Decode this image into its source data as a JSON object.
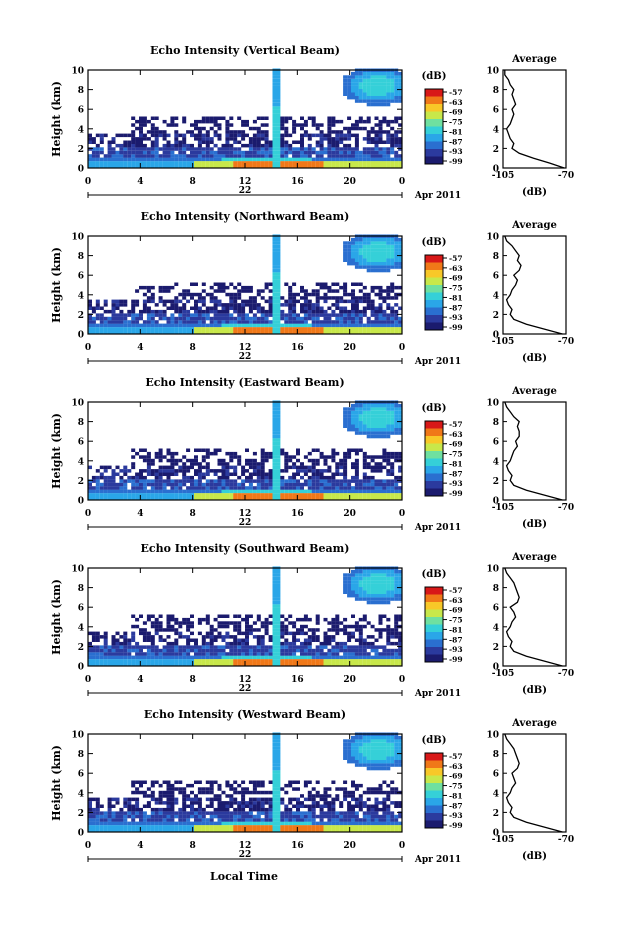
{
  "figure": {
    "xlabel": "Local Time",
    "colors": {
      "cmap": [
        "#1b1b6e",
        "#2b3a9e",
        "#2a6fd0",
        "#2aa6e8",
        "#35d0d8",
        "#6fe0a0",
        "#c8e84a",
        "#f8c828",
        "#f07818",
        "#d81818"
      ],
      "line": "#000000"
    }
  },
  "chart_data": [
    {
      "type": "heatmap",
      "title": "Echo Intensity (Vertical Beam)",
      "ylabel": "Height (km)",
      "ylim": [
        0,
        10
      ],
      "yticks": [
        "0",
        "2",
        "4",
        "6",
        "8",
        "10"
      ],
      "xlim": [
        0,
        24
      ],
      "xticks": [
        "0",
        "4",
        "8",
        "12",
        "16",
        "20",
        "0"
      ],
      "date_day": "22",
      "date_month": "Apr 2011",
      "colorbar": {
        "unit": "(dB)",
        "ticks": [
          "-57",
          "-63",
          "-69",
          "-75",
          "-81",
          "-87",
          "-93",
          "-99"
        ]
      },
      "profile": {
        "title": "Average",
        "xlabel": "(dB)",
        "xlim": [
          -105,
          -70
        ],
        "xticks": [
          "-105",
          "-70"
        ],
        "yticks": [
          "0",
          "2",
          "4",
          "6",
          "8",
          "10"
        ],
        "height": [
          0.0,
          0.5,
          1.0,
          1.5,
          2.0,
          2.5,
          3.0,
          3.5,
          4.0,
          4.5,
          5.0,
          5.5,
          6.0,
          6.5,
          7.0,
          7.5,
          8.0,
          8.5,
          9.0,
          9.5,
          10.0
        ],
        "value": [
          -71,
          -79,
          -88,
          -96,
          -100,
          -99,
          -101,
          -102,
          -103,
          -101,
          -100,
          -99,
          -100,
          -98,
          -99,
          -100,
          -99,
          -101,
          -102,
          -104,
          -104
        ]
      }
    },
    {
      "type": "heatmap",
      "title": "Echo Intensity (Northward Beam)",
      "ylabel": "Height (km)",
      "ylim": [
        0,
        10
      ],
      "yticks": [
        "0",
        "2",
        "4",
        "6",
        "8",
        "10"
      ],
      "xlim": [
        0,
        24
      ],
      "xticks": [
        "0",
        "4",
        "8",
        "12",
        "16",
        "20",
        "0"
      ],
      "date_day": "22",
      "date_month": "Apr 2011",
      "colorbar": {
        "unit": "(dB)",
        "ticks": [
          "-57",
          "-63",
          "-69",
          "-75",
          "-81",
          "-87",
          "-93",
          "-99"
        ]
      },
      "profile": {
        "title": "Average",
        "xlabel": "(dB)",
        "xlim": [
          -105,
          -70
        ],
        "xticks": [
          "-105",
          "-70"
        ],
        "yticks": [
          "0",
          "2",
          "4",
          "6",
          "8",
          "10"
        ],
        "height": [
          0.0,
          0.5,
          1.0,
          1.5,
          2.0,
          2.5,
          3.0,
          3.5,
          4.0,
          4.5,
          5.0,
          5.5,
          6.0,
          6.5,
          7.0,
          7.5,
          8.0,
          8.5,
          9.0,
          9.5,
          10.0
        ],
        "value": [
          -72,
          -82,
          -92,
          -99,
          -101,
          -100,
          -102,
          -103,
          -101,
          -100,
          -98,
          -97,
          -99,
          -96,
          -95,
          -97,
          -96,
          -98,
          -100,
          -103,
          -104
        ]
      }
    },
    {
      "type": "heatmap",
      "title": "Echo Intensity (Eastward Beam)",
      "ylabel": "Height (km)",
      "ylim": [
        0,
        10
      ],
      "yticks": [
        "0",
        "2",
        "4",
        "6",
        "8",
        "10"
      ],
      "xlim": [
        0,
        24
      ],
      "xticks": [
        "0",
        "4",
        "8",
        "12",
        "16",
        "20",
        "0"
      ],
      "date_day": "22",
      "date_month": "Apr 2011",
      "colorbar": {
        "unit": "(dB)",
        "ticks": [
          "-57",
          "-63",
          "-69",
          "-75",
          "-81",
          "-87",
          "-93",
          "-99"
        ]
      },
      "profile": {
        "title": "Average",
        "xlabel": "(dB)",
        "xlim": [
          -105,
          -70
        ],
        "xticks": [
          "-105",
          "-70"
        ],
        "yticks": [
          "0",
          "2",
          "4",
          "6",
          "8",
          "10"
        ],
        "height": [
          0.0,
          0.5,
          1.0,
          1.5,
          2.0,
          2.5,
          3.0,
          3.5,
          4.0,
          4.5,
          5.0,
          5.5,
          6.0,
          6.5,
          7.0,
          7.5,
          8.0,
          8.5,
          9.0,
          9.5,
          10.0
        ],
        "value": [
          -72,
          -82,
          -92,
          -99,
          -101,
          -100,
          -102,
          -103,
          -101,
          -100,
          -99,
          -97,
          -98,
          -96,
          -96,
          -97,
          -96,
          -99,
          -101,
          -103,
          -104
        ]
      }
    },
    {
      "type": "heatmap",
      "title": "Echo Intensity (Southward Beam)",
      "ylabel": "Height (km)",
      "ylim": [
        0,
        10
      ],
      "yticks": [
        "0",
        "2",
        "4",
        "6",
        "8",
        "10"
      ],
      "xlim": [
        0,
        24
      ],
      "xticks": [
        "0",
        "4",
        "8",
        "12",
        "16",
        "20",
        "0"
      ],
      "date_day": "22",
      "date_month": "Apr 2011",
      "colorbar": {
        "unit": "(dB)",
        "ticks": [
          "-57",
          "-63",
          "-69",
          "-75",
          "-81",
          "-87",
          "-93",
          "-99"
        ]
      },
      "profile": {
        "title": "Average",
        "xlabel": "(dB)",
        "xlim": [
          -105,
          -70
        ],
        "xticks": [
          "-105",
          "-70"
        ],
        "yticks": [
          "0",
          "2",
          "4",
          "6",
          "8",
          "10"
        ],
        "height": [
          0.0,
          0.5,
          1.0,
          1.5,
          2.0,
          2.5,
          3.0,
          3.5,
          4.0,
          4.5,
          5.0,
          5.5,
          6.0,
          6.5,
          7.0,
          7.5,
          8.0,
          8.5,
          9.0,
          9.5,
          10.0
        ],
        "value": [
          -72,
          -82,
          -92,
          -99,
          -101,
          -100,
          -102,
          -103,
          -101,
          -100,
          -98,
          -99,
          -101,
          -97,
          -96,
          -97,
          -98,
          -99,
          -101,
          -103,
          -104
        ]
      }
    },
    {
      "type": "heatmap",
      "title": "Echo Intensity (Westward Beam)",
      "ylabel": "Height (km)",
      "ylim": [
        0,
        10
      ],
      "yticks": [
        "0",
        "2",
        "4",
        "6",
        "8",
        "10"
      ],
      "xlim": [
        0,
        24
      ],
      "xticks": [
        "0",
        "4",
        "8",
        "12",
        "16",
        "20",
        "0"
      ],
      "date_day": "22",
      "date_month": "Apr 2011",
      "colorbar": {
        "unit": "(dB)",
        "ticks": [
          "-57",
          "-63",
          "-69",
          "-75",
          "-81",
          "-87",
          "-93",
          "-99"
        ]
      },
      "profile": {
        "title": "Average",
        "xlabel": "(dB)",
        "xlim": [
          -105,
          -70
        ],
        "xticks": [
          "-105",
          "-70"
        ],
        "yticks": [
          "0",
          "2",
          "4",
          "6",
          "8",
          "10"
        ],
        "height": [
          0.0,
          0.5,
          1.0,
          1.5,
          2.0,
          2.5,
          3.0,
          3.5,
          4.0,
          4.5,
          5.0,
          5.5,
          6.0,
          6.5,
          7.0,
          7.5,
          8.0,
          8.5,
          9.0,
          9.5,
          10.0
        ],
        "value": [
          -72,
          -82,
          -92,
          -99,
          -101,
          -100,
          -102,
          -103,
          -101,
          -100,
          -98,
          -99,
          -100,
          -97,
          -96,
          -97,
          -98,
          -99,
          -101,
          -103,
          -104
        ]
      }
    }
  ]
}
